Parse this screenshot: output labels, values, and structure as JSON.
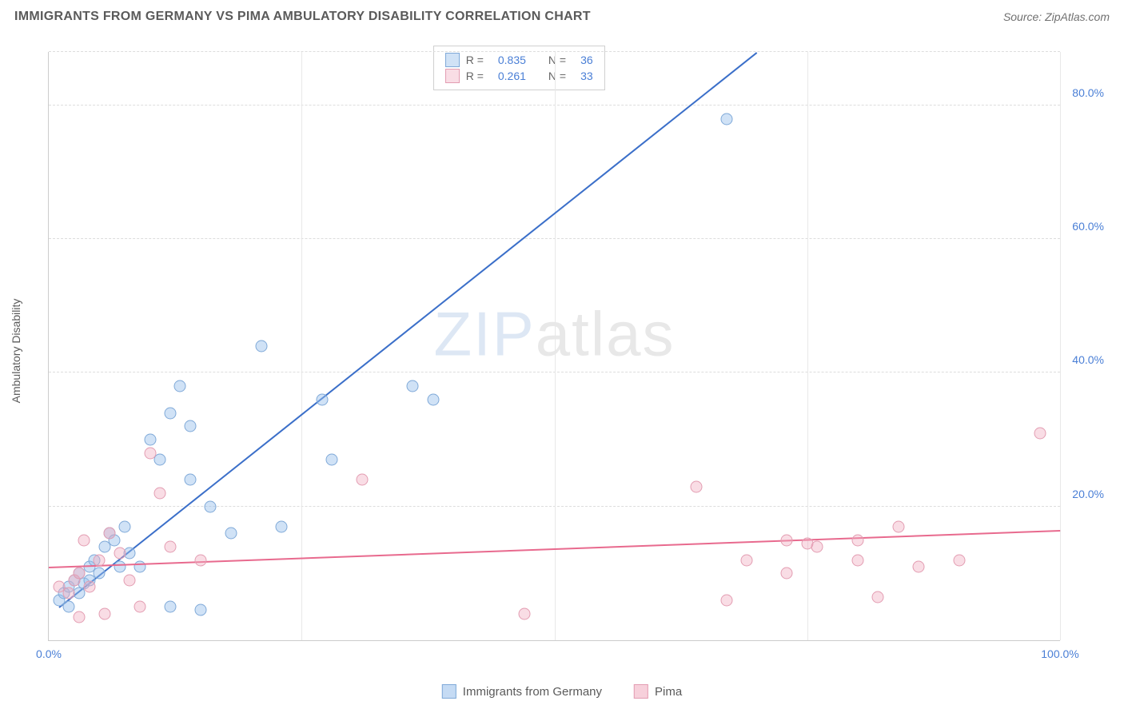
{
  "title": "IMMIGRANTS FROM GERMANY VS PIMA AMBULATORY DISABILITY CORRELATION CHART",
  "source": "Source: ZipAtlas.com",
  "y_axis_label": "Ambulatory Disability",
  "watermark": {
    "zip": "ZIP",
    "atlas": "atlas"
  },
  "chart": {
    "type": "scatter",
    "xlim": [
      0,
      100
    ],
    "ylim": [
      0,
      88
    ],
    "yticks": [
      {
        "v": 20,
        "label": "20.0%"
      },
      {
        "v": 40,
        "label": "40.0%"
      },
      {
        "v": 60,
        "label": "60.0%"
      },
      {
        "v": 80,
        "label": "80.0%"
      }
    ],
    "xticks": [
      {
        "v": 0,
        "label": "0.0%"
      },
      {
        "v": 100,
        "label": "100.0%"
      }
    ],
    "vgrid": [
      25,
      50,
      75,
      100
    ],
    "background_color": "#ffffff",
    "grid_color": "#dddddd",
    "marker_size": 15,
    "marker_border_width": 1.2,
    "series": [
      {
        "name": "Immigrants from Germany",
        "fill": "rgba(150,190,235,0.45)",
        "stroke": "#7fa9d8",
        "line_color": "#3b6fc9",
        "R": "0.835",
        "N": "36",
        "trend": {
          "x1": 1,
          "y1": 5,
          "x2": 70,
          "y2": 88
        },
        "points": [
          [
            1,
            6
          ],
          [
            1.5,
            7
          ],
          [
            2,
            8
          ],
          [
            2,
            5
          ],
          [
            2.5,
            9
          ],
          [
            3,
            10
          ],
          [
            3,
            7
          ],
          [
            3.5,
            8.5
          ],
          [
            4,
            11
          ],
          [
            4,
            9
          ],
          [
            4.5,
            12
          ],
          [
            5,
            10
          ],
          [
            5.5,
            14
          ],
          [
            6,
            16
          ],
          [
            6.5,
            15
          ],
          [
            7,
            11
          ],
          [
            7.5,
            17
          ],
          [
            8,
            13
          ],
          [
            9,
            11
          ],
          [
            10,
            30
          ],
          [
            11,
            27
          ],
          [
            12,
            34
          ],
          [
            13,
            38
          ],
          [
            14,
            32
          ],
          [
            14,
            24
          ],
          [
            15,
            4.5
          ],
          [
            16,
            20
          ],
          [
            18,
            16
          ],
          [
            21,
            44
          ],
          [
            23,
            17
          ],
          [
            27,
            36
          ],
          [
            28,
            27
          ],
          [
            36,
            38
          ],
          [
            38,
            36
          ],
          [
            67,
            78
          ],
          [
            12,
            5
          ]
        ]
      },
      {
        "name": "Pima",
        "fill": "rgba(240,170,190,0.40)",
        "stroke": "#e39db2",
        "line_color": "#e86a8e",
        "R": "0.261",
        "N": "33",
        "trend": {
          "x1": 0,
          "y1": 11,
          "x2": 100,
          "y2": 16.5
        },
        "points": [
          [
            1,
            8
          ],
          [
            2,
            7
          ],
          [
            2.5,
            9
          ],
          [
            3,
            10
          ],
          [
            3,
            3.5
          ],
          [
            3.5,
            15
          ],
          [
            4,
            8
          ],
          [
            5,
            12
          ],
          [
            5.5,
            4
          ],
          [
            6,
            16
          ],
          [
            7,
            13
          ],
          [
            8,
            9
          ],
          [
            9,
            5
          ],
          [
            10,
            28
          ],
          [
            11,
            22
          ],
          [
            12,
            14
          ],
          [
            15,
            12
          ],
          [
            31,
            24
          ],
          [
            47,
            4
          ],
          [
            64,
            23
          ],
          [
            67,
            6
          ],
          [
            69,
            12
          ],
          [
            73,
            15
          ],
          [
            73,
            10
          ],
          [
            75,
            14.5
          ],
          [
            76,
            14
          ],
          [
            80,
            12
          ],
          [
            80,
            15
          ],
          [
            82,
            6.5
          ],
          [
            84,
            17
          ],
          [
            86,
            11
          ],
          [
            90,
            12
          ],
          [
            98,
            31
          ]
        ]
      }
    ]
  },
  "bottom_legend": [
    {
      "label": "Immigrants from Germany",
      "fill": "rgba(150,190,235,0.55)",
      "stroke": "#7fa9d8"
    },
    {
      "label": "Pima",
      "fill": "rgba(240,170,190,0.55)",
      "stroke": "#e39db2"
    }
  ]
}
